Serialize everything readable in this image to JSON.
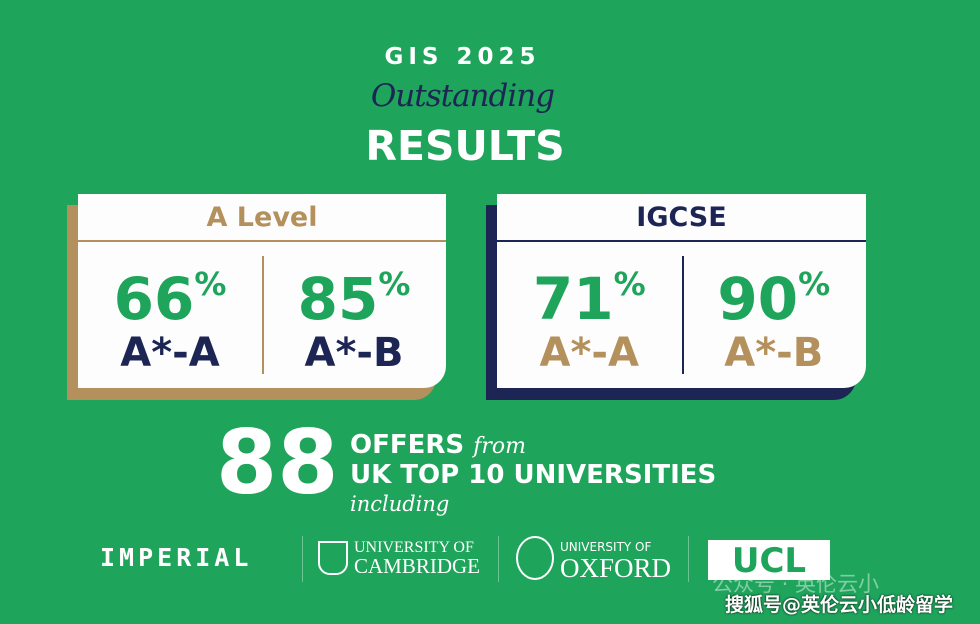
{
  "header": {
    "top": "GIS 2025",
    "script": "Outstanding",
    "main": "RESULTS"
  },
  "a_level": {
    "title": "A Level",
    "stats": [
      {
        "value": "66",
        "unit": "%",
        "grade": "A*-A"
      },
      {
        "value": "85",
        "unit": "%",
        "grade": "A*-B"
      }
    ]
  },
  "igcse": {
    "title": "IGCSE",
    "stats": [
      {
        "value": "71",
        "unit": "%",
        "grade": "A*-A"
      },
      {
        "value": "90",
        "unit": "%",
        "grade": "A*-B"
      }
    ]
  },
  "offers": {
    "count": "88",
    "line1": "OFFERS",
    "from": "from",
    "line2": "UK TOP 10 UNIVERSITIES",
    "including": "including"
  },
  "universities": {
    "imperial": "IMPERIAL",
    "cambridge_1": "UNIVERSITY OF",
    "cambridge_2": "CAMBRIDGE",
    "oxford_1": "UNIVERSITY OF",
    "oxford_2": "OXFORD",
    "ucl": "UCL"
  },
  "watermarks": {
    "wechat": "公众号 · 英伦云小",
    "sohu": "搜狐号@英伦云小低龄留学"
  },
  "colors": {
    "background": "#1ea45b",
    "gold": "#b4915c",
    "navy": "#1c2553",
    "white": "#fdfdfd"
  }
}
